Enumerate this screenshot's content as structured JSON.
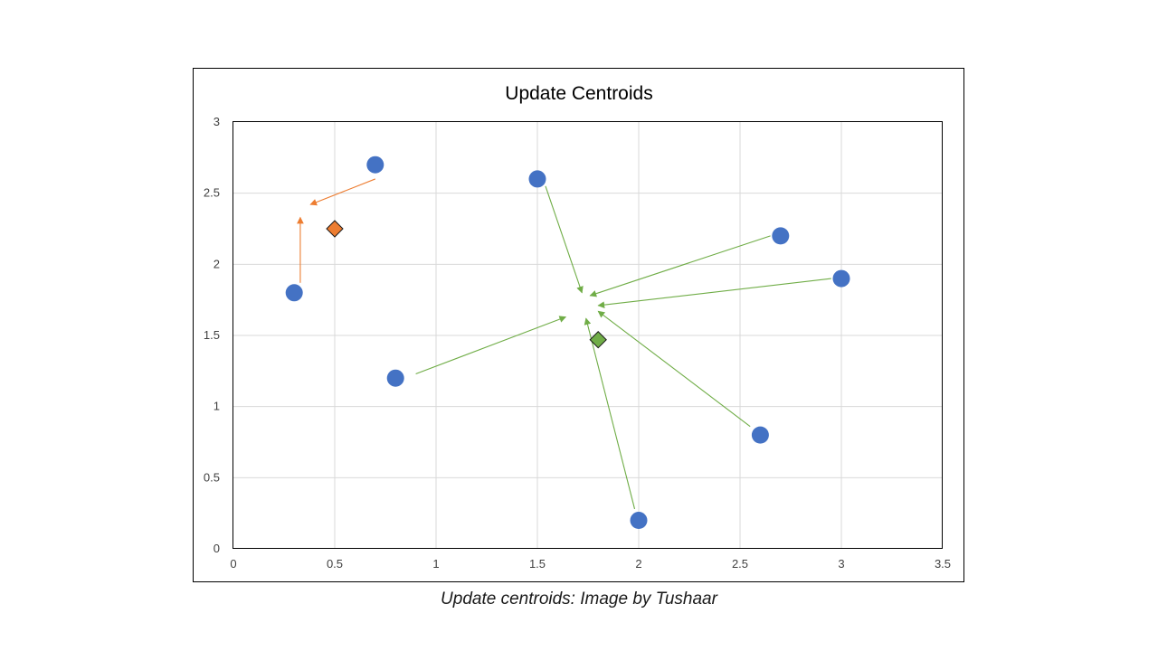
{
  "caption": "Update centroids: Image by Tushaar",
  "chart_data": {
    "type": "scatter",
    "title": "Update Centroids",
    "xlabel": "",
    "ylabel": "",
    "xlim": [
      0,
      3.5
    ],
    "ylim": [
      0,
      3
    ],
    "x_ticks": [
      0,
      0.5,
      1,
      1.5,
      2,
      2.5,
      3,
      3.5
    ],
    "y_ticks": [
      0,
      0.5,
      1,
      1.5,
      2,
      2.5,
      3
    ],
    "x_tick_labels": [
      "0",
      "0.5",
      "1",
      "1.5",
      "2",
      "2.5",
      "3",
      "3.5"
    ],
    "y_tick_labels": [
      "0",
      "0.5",
      "1",
      "1.5",
      "2",
      "2.5",
      "3"
    ],
    "grid": true,
    "legend": false,
    "colors": {
      "points": "#4472C4",
      "cluster_1": "#ED7D31",
      "cluster_2": "#70AD47",
      "grid": "#d9d9d9"
    },
    "points": [
      {
        "x": 0.3,
        "y": 1.8
      },
      {
        "x": 0.7,
        "y": 2.7
      },
      {
        "x": 0.8,
        "y": 1.2
      },
      {
        "x": 1.5,
        "y": 2.6
      },
      {
        "x": 2.0,
        "y": 0.2
      },
      {
        "x": 2.6,
        "y": 0.8
      },
      {
        "x": 2.7,
        "y": 2.2
      },
      {
        "x": 3.0,
        "y": 1.9
      }
    ],
    "centroids": [
      {
        "x": 0.5,
        "y": 2.25,
        "color": "#ED7D31"
      },
      {
        "x": 1.8,
        "y": 1.47,
        "color": "#70AD47"
      }
    ],
    "arrows": [
      {
        "from": [
          0.7,
          2.6
        ],
        "to": [
          0.38,
          2.42
        ],
        "color": "#ED7D31"
      },
      {
        "from": [
          0.33,
          1.87
        ],
        "to": [
          0.33,
          2.33
        ],
        "color": "#ED7D31"
      },
      {
        "from": [
          1.54,
          2.55
        ],
        "to": [
          1.72,
          1.8
        ],
        "color": "#70AD47"
      },
      {
        "from": [
          2.65,
          2.2
        ],
        "to": [
          1.76,
          1.78
        ],
        "color": "#70AD47"
      },
      {
        "from": [
          2.95,
          1.9
        ],
        "to": [
          1.8,
          1.71
        ],
        "color": "#70AD47"
      },
      {
        "from": [
          0.9,
          1.23
        ],
        "to": [
          1.64,
          1.63
        ],
        "color": "#70AD47"
      },
      {
        "from": [
          2.55,
          0.86
        ],
        "to": [
          1.8,
          1.67
        ],
        "color": "#70AD47"
      },
      {
        "from": [
          1.98,
          0.28
        ],
        "to": [
          1.74,
          1.62
        ],
        "color": "#70AD47"
      }
    ]
  }
}
